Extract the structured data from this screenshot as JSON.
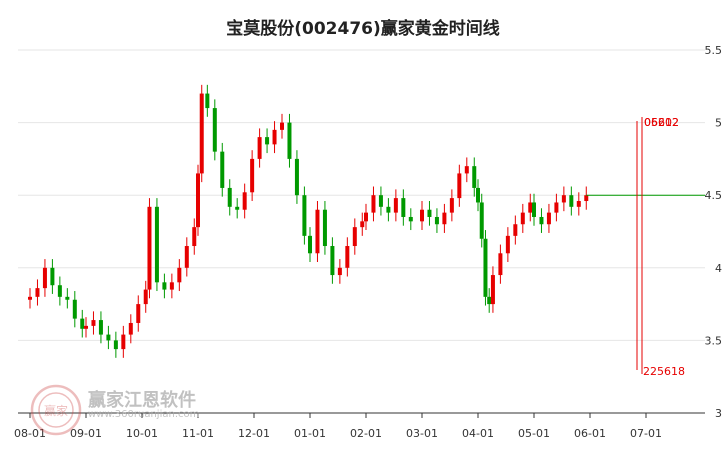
{
  "chart_data": {
    "type": "candlestick",
    "title": "宝莫股份(002476)赢家黄金时间线",
    "xlabel": "",
    "ylabel": "",
    "ylim": [
      3,
      5.5
    ],
    "yticks": [
      3,
      3.5,
      4,
      4.5,
      5,
      5.5
    ],
    "ytick_labels": [
      "3",
      "3.5",
      "4",
      "4.5",
      "5",
      "5.5"
    ],
    "xtick_labels": [
      "08-01",
      "09-01",
      "10-01",
      "11-01",
      "12-01",
      "01-01",
      "02-01",
      "03-01",
      "04-01",
      "05-01",
      "06-01",
      "07-01"
    ],
    "price_series": [
      [
        "08-01",
        3.8
      ],
      [
        "08-05",
        3.86
      ],
      [
        "08-09",
        4.0
      ],
      [
        "08-13",
        3.88
      ],
      [
        "08-17",
        3.8
      ],
      [
        "08-21",
        3.78
      ],
      [
        "08-25",
        3.65
      ],
      [
        "08-29",
        3.58
      ],
      [
        "09-01",
        3.6
      ],
      [
        "09-05",
        3.64
      ],
      [
        "09-09",
        3.54
      ],
      [
        "09-13",
        3.5
      ],
      [
        "09-17",
        3.44
      ],
      [
        "09-21",
        3.54
      ],
      [
        "09-25",
        3.62
      ],
      [
        "09-29",
        3.75
      ],
      [
        "10-03",
        3.85
      ],
      [
        "10-05",
        4.42
      ],
      [
        "10-09",
        3.9
      ],
      [
        "10-13",
        3.85
      ],
      [
        "10-17",
        3.9
      ],
      [
        "10-21",
        4.0
      ],
      [
        "10-25",
        4.15
      ],
      [
        "10-29",
        4.28
      ],
      [
        "11-01",
        4.65
      ],
      [
        "11-03",
        5.2
      ],
      [
        "11-06",
        5.1
      ],
      [
        "11-10",
        4.8
      ],
      [
        "11-14",
        4.55
      ],
      [
        "11-18",
        4.42
      ],
      [
        "11-22",
        4.4
      ],
      [
        "11-26",
        4.52
      ],
      [
        "11-30",
        4.75
      ],
      [
        "12-04",
        4.9
      ],
      [
        "12-08",
        4.85
      ],
      [
        "12-12",
        4.95
      ],
      [
        "12-16",
        5.0
      ],
      [
        "12-20",
        4.75
      ],
      [
        "12-24",
        4.5
      ],
      [
        "12-28",
        4.22
      ],
      [
        "01-01",
        4.1
      ],
      [
        "01-05",
        4.4
      ],
      [
        "01-09",
        4.15
      ],
      [
        "01-13",
        3.95
      ],
      [
        "01-17",
        4.0
      ],
      [
        "01-21",
        4.15
      ],
      [
        "01-25",
        4.28
      ],
      [
        "01-29",
        4.32
      ],
      [
        "02-01",
        4.38
      ],
      [
        "02-05",
        4.5
      ],
      [
        "02-09",
        4.42
      ],
      [
        "02-13",
        4.38
      ],
      [
        "02-17",
        4.48
      ],
      [
        "02-21",
        4.35
      ],
      [
        "02-25",
        4.32
      ],
      [
        "03-01",
        4.4
      ],
      [
        "03-05",
        4.35
      ],
      [
        "03-09",
        4.3
      ],
      [
        "03-13",
        4.38
      ],
      [
        "03-17",
        4.48
      ],
      [
        "03-21",
        4.65
      ],
      [
        "03-25",
        4.7
      ],
      [
        "03-29",
        4.55
      ],
      [
        "04-01",
        4.45
      ],
      [
        "04-03",
        4.2
      ],
      [
        "04-05",
        3.8
      ],
      [
        "04-07",
        3.75
      ],
      [
        "04-09",
        3.95
      ],
      [
        "04-13",
        4.1
      ],
      [
        "04-17",
        4.22
      ],
      [
        "04-21",
        4.3
      ],
      [
        "04-25",
        4.38
      ],
      [
        "04-29",
        4.45
      ],
      [
        "05-01",
        4.35
      ],
      [
        "05-05",
        4.3
      ],
      [
        "05-09",
        4.38
      ],
      [
        "05-13",
        4.45
      ],
      [
        "05-17",
        4.5
      ],
      [
        "05-21",
        4.42
      ],
      [
        "05-25",
        4.46
      ],
      [
        "05-29",
        4.5
      ]
    ],
    "projection_level": 4.5,
    "annotations": [
      {
        "label": "06202",
        "color": "#e60000"
      },
      {
        "label": "05612",
        "color": "#e60000"
      },
      {
        "label": "225618",
        "color": "#e60000"
      }
    ],
    "colors": {
      "up": "#e60000",
      "down": "#009900",
      "grid": "#e6e6e6"
    }
  },
  "watermark": {
    "text": "赢家江恩软件",
    "url": "www.360ruanjian.com",
    "logo_text": "赢家"
  }
}
